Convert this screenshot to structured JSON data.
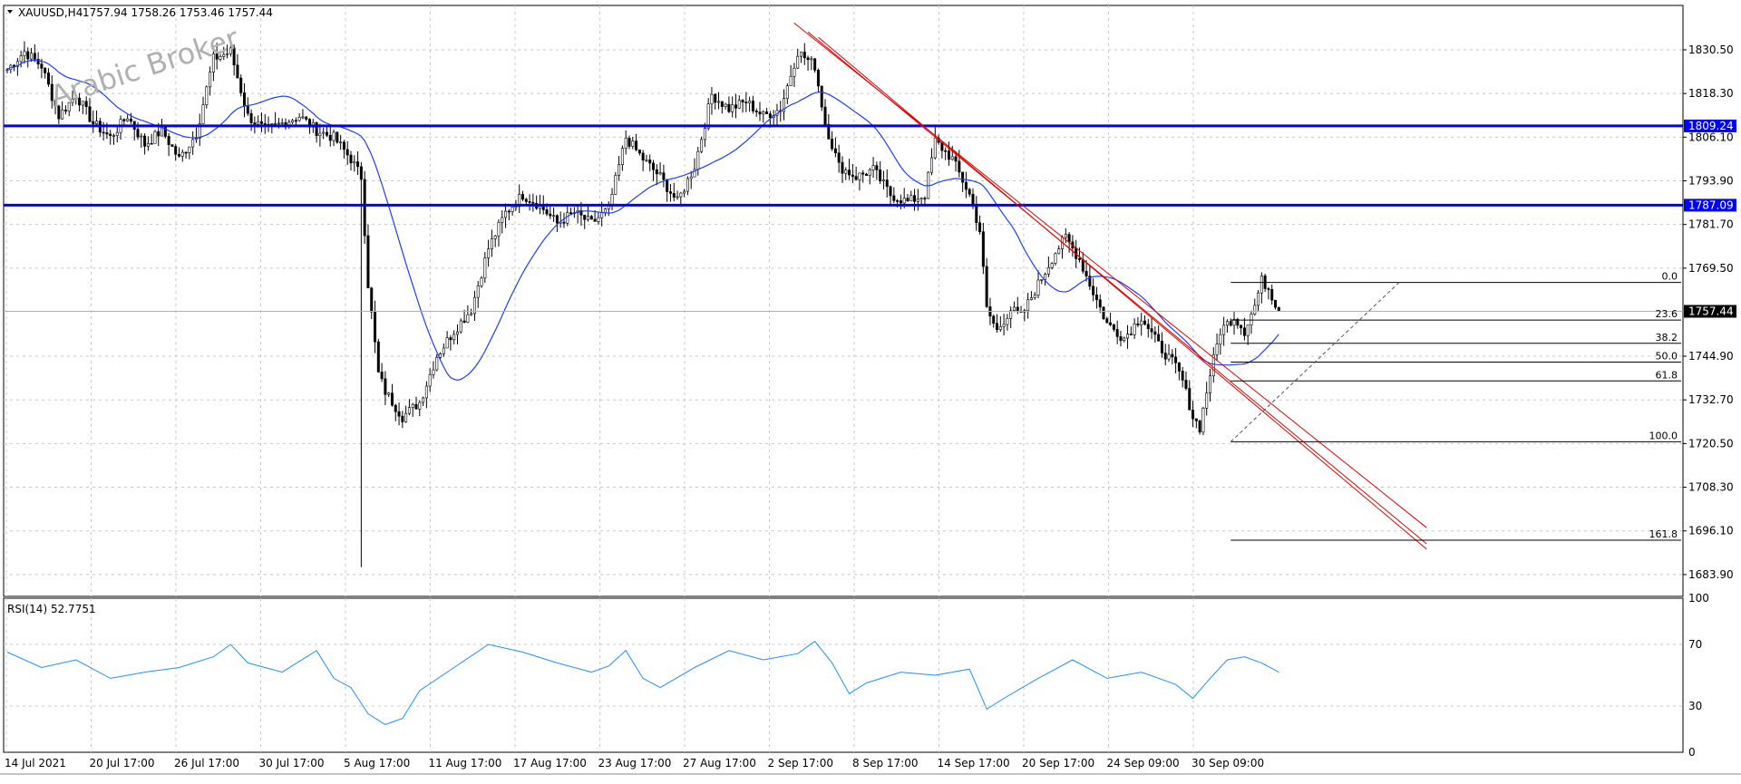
{
  "header": {
    "symbol_tf": "XAUUSD,H4",
    "ohlc": "1757.94 1758.26 1753.46 1757.44"
  },
  "watermark": "Arabic Broker",
  "colors": {
    "candle": "#000000",
    "ma": "#1e3dff",
    "level": "#0000ff",
    "trend": "#e00000",
    "rsi": "#1e90ff",
    "grid": "#c8c8c8",
    "fib": "#000000"
  },
  "chart_data": [
    {
      "type": "candlestick",
      "symbol": "XAUUSD",
      "timeframe": "H4",
      "ylim": [
        1677.8,
        1842.9
      ],
      "y_ticks": [
        "1830.50",
        "1818.30",
        "1806.10",
        "1793.90",
        "1781.70",
        "1769.50",
        "1744.90",
        "1732.70",
        "1720.50",
        "1708.30",
        "1696.10",
        "1683.90"
      ],
      "x_labels": [
        "14 Jul 2021",
        "20 Jul 17:00",
        "26 Jul 17:00",
        "30 Jul 17:00",
        "5 Aug 17:00",
        "11 Aug 17:00",
        "17 Aug 17:00",
        "23 Aug 17:00",
        "27 Aug 17:00",
        "2 Sep 17:00",
        "8 Sep 17:00",
        "14 Sep 17:00",
        "20 Sep 17:00",
        "24 Sep 09:00",
        "30 Sep 09:00"
      ],
      "close_path": [
        [
          0,
          1825
        ],
        [
          5,
          1830
        ],
        [
          10,
          1826
        ],
        [
          15,
          1812
        ],
        [
          20,
          1818
        ],
        [
          25,
          1810
        ],
        [
          30,
          1806
        ],
        [
          35,
          1812
        ],
        [
          40,
          1804
        ],
        [
          45,
          1808
        ],
        [
          50,
          1800
        ],
        [
          55,
          1807
        ],
        [
          60,
          1828
        ],
        [
          65,
          1830
        ],
        [
          70,
          1812
        ],
        [
          75,
          1808
        ],
        [
          80,
          1810
        ],
        [
          85,
          1812
        ],
        [
          90,
          1808
        ],
        [
          95,
          1806
        ],
        [
          100,
          1800
        ],
        [
          103,
          1795
        ],
        [
          105,
          1765
        ],
        [
          108,
          1740
        ],
        [
          110,
          1735
        ],
        [
          115,
          1728
        ],
        [
          120,
          1732
        ],
        [
          125,
          1745
        ],
        [
          130,
          1752
        ],
        [
          135,
          1758
        ],
        [
          140,
          1775
        ],
        [
          145,
          1785
        ],
        [
          150,
          1790
        ],
        [
          155,
          1787
        ],
        [
          160,
          1782
        ],
        [
          165,
          1785
        ],
        [
          170,
          1782
        ],
        [
          175,
          1786
        ],
        [
          180,
          1806
        ],
        [
          185,
          1800
        ],
        [
          190,
          1795
        ],
        [
          195,
          1788
        ],
        [
          200,
          1798
        ],
        [
          205,
          1818
        ],
        [
          210,
          1814
        ],
        [
          215,
          1816
        ],
        [
          220,
          1812
        ],
        [
          225,
          1814
        ],
        [
          230,
          1830
        ],
        [
          235,
          1826
        ],
        [
          238,
          1810
        ],
        [
          242,
          1798
        ],
        [
          247,
          1795
        ],
        [
          252,
          1797
        ],
        [
          257,
          1790
        ],
        [
          262,
          1788
        ],
        [
          267,
          1790
        ],
        [
          270,
          1805
        ],
        [
          275,
          1800
        ],
        [
          280,
          1790
        ],
        [
          283,
          1780
        ],
        [
          285,
          1758
        ],
        [
          288,
          1752
        ],
        [
          292,
          1758
        ],
        [
          295,
          1756
        ],
        [
          300,
          1765
        ],
        [
          305,
          1774
        ],
        [
          308,
          1778
        ],
        [
          312,
          1772
        ],
        [
          315,
          1765
        ],
        [
          320,
          1754
        ],
        [
          325,
          1750
        ],
        [
          330,
          1756
        ],
        [
          335,
          1748
        ],
        [
          340,
          1742
        ],
        [
          342,
          1738
        ],
        [
          345,
          1728
        ],
        [
          347,
          1725
        ],
        [
          350,
          1740
        ],
        [
          353,
          1752
        ],
        [
          357,
          1756
        ],
        [
          360,
          1752
        ],
        [
          363,
          1759
        ],
        [
          365,
          1766
        ],
        [
          367,
          1764
        ],
        [
          370,
          1757.44
        ]
      ],
      "overlays": {
        "moving_average": "blue line",
        "horizontal_levels": [
          1809.24,
          1787.09
        ],
        "current_price": 1757.44,
        "fibonacci": {
          "levels": [
            "0.0",
            "23.6",
            "38.2",
            "50.0",
            "61.8",
            "100.0",
            "161.8"
          ],
          "high": 1765.5,
          "low": 1721.0
        },
        "trend_channel": "red descending channel"
      }
    },
    {
      "type": "line",
      "name": "RSI(14)",
      "value_label": "52.7751",
      "ylim": [
        0,
        100
      ],
      "y_ticks": [
        "100",
        "70",
        "30",
        "0"
      ],
      "x": [
        0,
        10,
        20,
        30,
        40,
        50,
        60,
        65,
        70,
        80,
        90,
        95,
        100,
        105,
        110,
        115,
        120,
        130,
        140,
        150,
        160,
        170,
        175,
        180,
        185,
        190,
        200,
        210,
        220,
        230,
        235,
        240,
        245,
        250,
        260,
        270,
        280,
        285,
        290,
        300,
        310,
        320,
        330,
        340,
        345,
        350,
        355,
        360,
        365,
        370
      ],
      "values": [
        65,
        55,
        60,
        48,
        52,
        55,
        62,
        70,
        58,
        52,
        66,
        48,
        42,
        25,
        18,
        22,
        40,
        55,
        70,
        65,
        58,
        52,
        56,
        66,
        48,
        42,
        55,
        66,
        60,
        64,
        72,
        58,
        38,
        45,
        52,
        50,
        54,
        28,
        35,
        48,
        60,
        48,
        52,
        44,
        35,
        48,
        60,
        62,
        58,
        52
      ]
    }
  ]
}
